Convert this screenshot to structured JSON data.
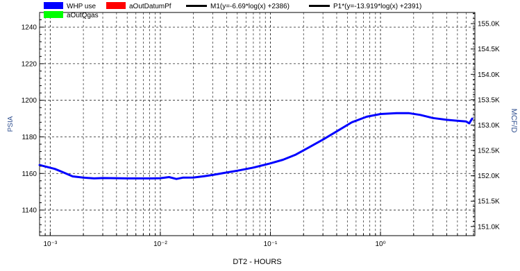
{
  "chart_data": {
    "type": "line",
    "xlabel": "DT2 - HOURS",
    "ylabel": "PSIA",
    "y2label": "MCF/D",
    "x_scale": "log",
    "xlim": [
      0.0008,
      7.2
    ],
    "ylim": [
      1126,
      1248
    ],
    "y2lim": [
      150.82,
      155.22
    ],
    "grid": true,
    "legend": [
      {
        "label": "WHP use",
        "color": "#0000ff",
        "kind": "box"
      },
      {
        "label": "aOutDatumPf",
        "color": "#ff0000",
        "kind": "box"
      },
      {
        "label": "M1(y=-6.69*log(x) +2386)",
        "color": "#000000",
        "kind": "line"
      },
      {
        "label": "P1*(y=-13.919*log(x) +2391)",
        "color": "#000000",
        "kind": "line"
      },
      {
        "label": "aOutQgas",
        "color": "#00ff00",
        "kind": "box"
      }
    ],
    "x_ticks": [
      {
        "value": 0.001,
        "label": "10⁻³"
      },
      {
        "value": 0.01,
        "label": "10⁻²"
      },
      {
        "value": 0.1,
        "label": "10⁻¹"
      },
      {
        "value": 1,
        "label": "10⁰"
      }
    ],
    "y_ticks": [
      1140,
      1160,
      1180,
      1200,
      1220,
      1240
    ],
    "y2_ticks": [
      {
        "value": 151.0,
        "label": "151.0K"
      },
      {
        "value": 151.5,
        "label": "151.5K"
      },
      {
        "value": 152.0,
        "label": "152.0K"
      },
      {
        "value": 152.5,
        "label": "152.5K"
      },
      {
        "value": 153.0,
        "label": "153.0K"
      },
      {
        "value": 153.5,
        "label": "153.5K"
      },
      {
        "value": 154.0,
        "label": "154.0K"
      },
      {
        "value": 154.5,
        "label": "154.5K"
      },
      {
        "value": 155.0,
        "label": "155.0K"
      }
    ],
    "series": [
      {
        "name": "WHP use",
        "color": "#0000ff",
        "points": [
          [
            0.0008,
            1164.6
          ],
          [
            0.0009,
            1163.8
          ],
          [
            0.0011,
            1162.5
          ],
          [
            0.0013,
            1160.7
          ],
          [
            0.0016,
            1158.4
          ],
          [
            0.002,
            1157.7
          ],
          [
            0.0025,
            1157.3
          ],
          [
            0.003,
            1157.5
          ],
          [
            0.004,
            1157.4
          ],
          [
            0.005,
            1157.3
          ],
          [
            0.007,
            1157.3
          ],
          [
            0.0085,
            1157.3
          ],
          [
            0.01,
            1157.4
          ],
          [
            0.012,
            1158.0
          ],
          [
            0.014,
            1157.0
          ],
          [
            0.016,
            1157.7
          ],
          [
            0.02,
            1157.8
          ],
          [
            0.025,
            1158.5
          ],
          [
            0.03,
            1159.2
          ],
          [
            0.04,
            1160.5
          ],
          [
            0.05,
            1161.5
          ],
          [
            0.07,
            1163.2
          ],
          [
            0.1,
            1165.5
          ],
          [
            0.13,
            1167.5
          ],
          [
            0.17,
            1170.3
          ],
          [
            0.22,
            1174.0
          ],
          [
            0.3,
            1178.5
          ],
          [
            0.4,
            1183.0
          ],
          [
            0.55,
            1188.0
          ],
          [
            0.75,
            1191.0
          ],
          [
            1.0,
            1192.5
          ],
          [
            1.4,
            1193.0
          ],
          [
            1.8,
            1193.0
          ],
          [
            2.3,
            1192.0
          ],
          [
            3.0,
            1190.3
          ],
          [
            4.0,
            1189.3
          ],
          [
            5.0,
            1188.8
          ],
          [
            6.0,
            1188.4
          ],
          [
            6.4,
            1187.4
          ],
          [
            6.8,
            1190.0
          ]
        ]
      }
    ]
  }
}
